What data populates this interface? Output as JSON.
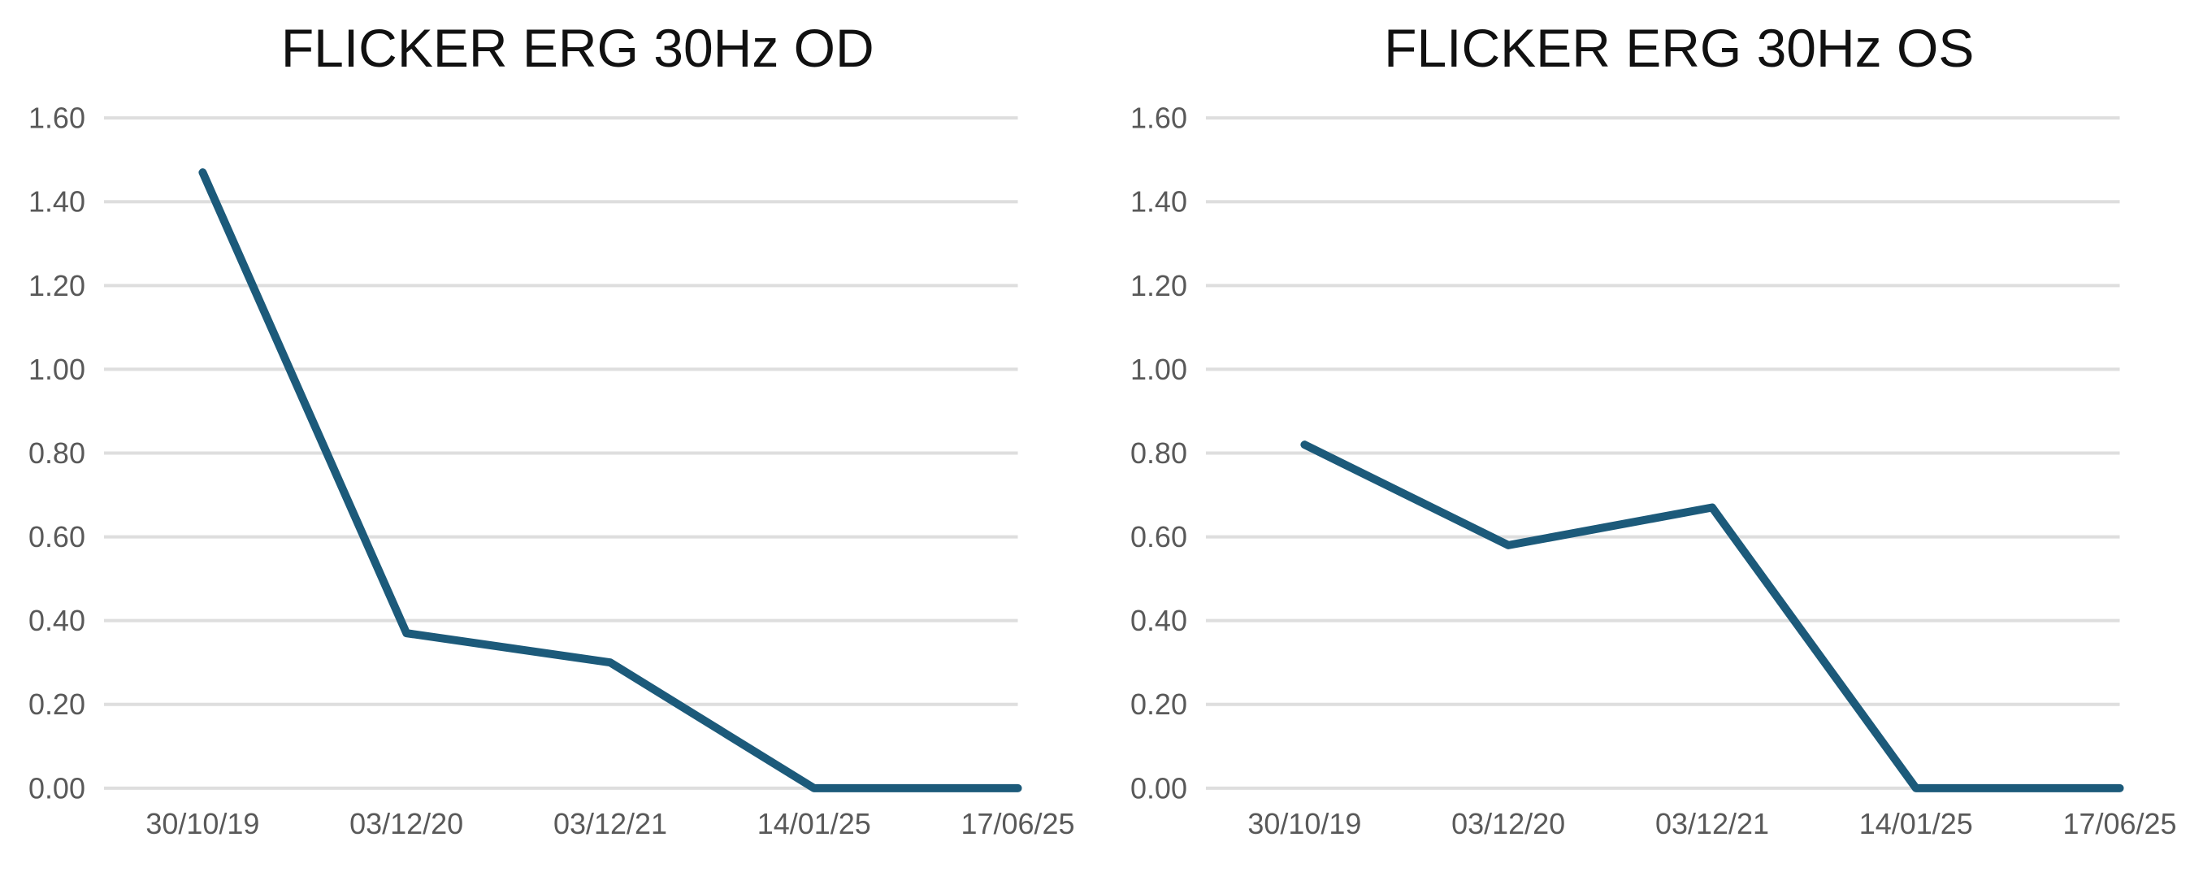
{
  "page": {
    "background_color": "#ffffff"
  },
  "chart_data": [
    {
      "type": "line",
      "title": "FLICKER ERG 30Hz OD",
      "categories": [
        "30/10/19",
        "03/12/20",
        "03/12/21",
        "14/01/25",
        "17/06/25"
      ],
      "values": [
        1.47,
        0.37,
        0.3,
        0.0,
        0.0
      ],
      "series": [
        {
          "name": "FLICKER ERG 30Hz OD",
          "values": [
            1.47,
            0.37,
            0.3,
            0.0,
            0.0
          ]
        }
      ],
      "xlabel": "",
      "ylabel": "",
      "ylim": [
        0,
        1.6
      ],
      "ytick_step": 0.2,
      "yticks": [
        "1.60",
        "1.40",
        "1.20",
        "1.00",
        "0.80",
        "0.60",
        "0.40",
        "0.20",
        "0.00"
      ],
      "grid": "horizontal",
      "legend_position": "none",
      "line_color": "#1C5A7A",
      "gridline_color": "#DEDEDE",
      "tick_label_color": "#595959",
      "title_color": "#111111"
    },
    {
      "type": "line",
      "title": "FLICKER ERG 30Hz OS",
      "categories": [
        "30/10/19",
        "03/12/20",
        "03/12/21",
        "14/01/25",
        "17/06/25"
      ],
      "values": [
        0.82,
        0.58,
        0.67,
        0.0,
        0.0
      ],
      "series": [
        {
          "name": "FLICKER ERG 30Hz OS",
          "values": [
            0.82,
            0.58,
            0.67,
            0.0,
            0.0
          ]
        }
      ],
      "xlabel": "",
      "ylabel": "",
      "ylim": [
        0,
        1.6
      ],
      "ytick_step": 0.2,
      "yticks": [
        "1.60",
        "1.40",
        "1.20",
        "1.00",
        "0.80",
        "0.60",
        "0.40",
        "0.20",
        "0.00"
      ],
      "grid": "horizontal",
      "legend_position": "none",
      "line_color": "#1C5A7A",
      "gridline_color": "#DEDEDE",
      "tick_label_color": "#595959",
      "title_color": "#111111"
    }
  ]
}
